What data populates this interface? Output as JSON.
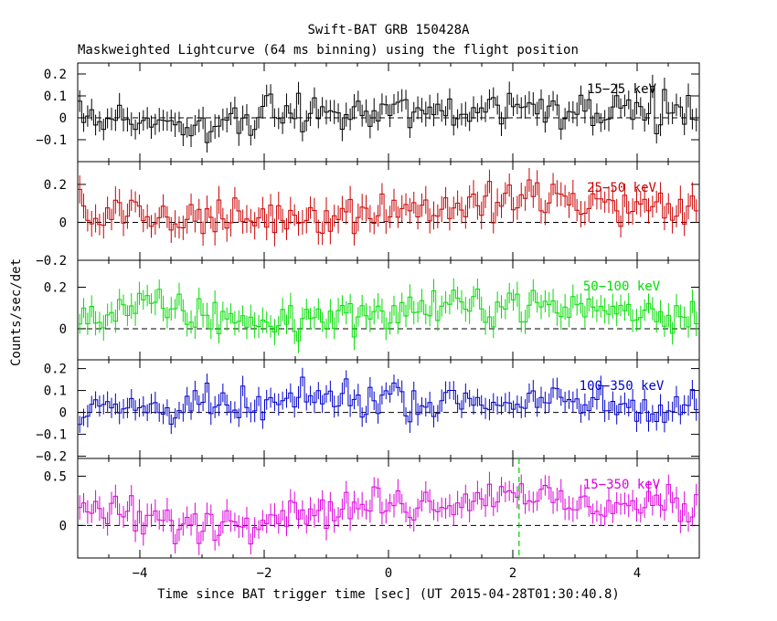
{
  "chart_data": {
    "type": "line",
    "title": "Swift-BAT GRB 150428A",
    "subtitle": "Maskweighted Lightcurve (64 ms binning) using the flight position",
    "xlabel": "Time since BAT trigger time [sec] (UT 2015-04-28T01:30:40.8)",
    "ylabel": "Counts/sec/det",
    "xlim": [
      -5,
      5
    ],
    "x_ticks": [
      -4,
      -2,
      0,
      2,
      4
    ],
    "x_tick_labels": [
      "−4",
      "−2",
      "0",
      "2",
      "4"
    ],
    "bin_width_sec": 0.064,
    "trigger_marker_x": 2.1,
    "panels": [
      {
        "name": "15-25 keV",
        "label": "15−25 keV",
        "color": "#000000",
        "ylim": [
          -0.2,
          0.25
        ],
        "yticks": [
          -0.1,
          0,
          0.1,
          0.2
        ],
        "ytick_labels": [
          "−0.1",
          "0",
          "0.1",
          "0.2"
        ],
        "amp": 0.065,
        "err": 0.05,
        "trend": [
          [
            -5,
            0.02
          ],
          [
            -3.5,
            -0.02
          ],
          [
            -1,
            0.02
          ],
          [
            1.5,
            0.03
          ],
          [
            2,
            0.06
          ],
          [
            5,
            0.02
          ]
        ]
      },
      {
        "name": "25-50 keV",
        "label": "25−50 keV",
        "color": "#cc0000",
        "ylim": [
          -0.2,
          0.32
        ],
        "yticks": [
          -0.2,
          0,
          0.2
        ],
        "ytick_labels": [
          "−0.2",
          "0",
          "0.2"
        ],
        "amp": 0.075,
        "err": 0.065,
        "trend": [
          [
            -5,
            0.06
          ],
          [
            -3,
            0.01
          ],
          [
            -1,
            0.05
          ],
          [
            1,
            0.08
          ],
          [
            2.5,
            0.12
          ],
          [
            5,
            0.05
          ]
        ]
      },
      {
        "name": "50-100 keV",
        "label": "50−100 keV",
        "color": "#00dd00",
        "ylim": [
          -0.15,
          0.33
        ],
        "yticks": [
          0,
          0.2
        ],
        "ytick_labels": [
          "0",
          "0.2"
        ],
        "amp": 0.06,
        "err": 0.055,
        "trend": [
          [
            -5,
            0.05
          ],
          [
            -4,
            0.1
          ],
          [
            -2,
            0.03
          ],
          [
            0,
            0.08
          ],
          [
            2,
            0.12
          ],
          [
            5,
            0.07
          ]
        ]
      },
      {
        "name": "100-350 keV",
        "label": "100−350 keV",
        "color": "#0000cc",
        "ylim": [
          -0.21,
          0.24
        ],
        "yticks": [
          -0.2,
          -0.1,
          0,
          0.1,
          0.2
        ],
        "ytick_labels": [
          "−0.2",
          "−0.1",
          "0",
          "0.1",
          "0.2"
        ],
        "amp": 0.06,
        "err": 0.045,
        "trend": [
          [
            -5,
            0.02
          ],
          [
            -2,
            0.02
          ],
          [
            -1,
            0.07
          ],
          [
            1,
            0.05
          ],
          [
            3,
            0.04
          ],
          [
            5,
            0.03
          ]
        ]
      },
      {
        "name": "15-350 keV",
        "label": "15−350 keV",
        "color": "#dd00dd",
        "ylim": [
          -0.33,
          0.68
        ],
        "yticks": [
          0,
          0.5
        ],
        "ytick_labels": [
          "0",
          "0.5"
        ],
        "amp": 0.13,
        "err": 0.11,
        "trend": [
          [
            -5,
            0.2
          ],
          [
            -3.2,
            0.0
          ],
          [
            -1.5,
            0.15
          ],
          [
            1,
            0.25
          ],
          [
            2,
            0.35
          ],
          [
            3,
            0.2
          ],
          [
            5,
            0.2
          ]
        ]
      }
    ]
  }
}
